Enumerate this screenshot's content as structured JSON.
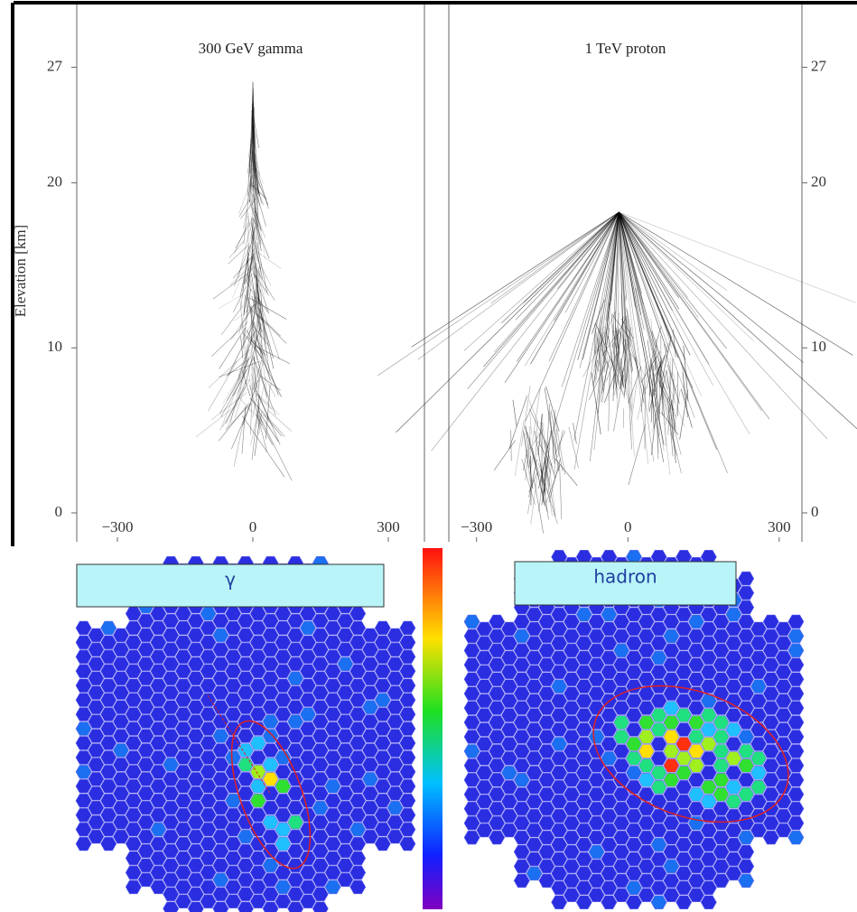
{
  "chart_data": [
    {
      "type": "shower",
      "title": "300 GeV gamma",
      "y_label": "Elevation [km]",
      "xlim": [
        -390,
        380
      ],
      "ylim": [
        -1.75,
        30.8
      ],
      "xticks": [
        {
          "value": -300,
          "label": "−300"
        },
        0,
        300
      ],
      "yticks": [
        0,
        10,
        20,
        27
      ]
    },
    {
      "type": "shower",
      "title": "1 TeV proton",
      "xlim": [
        -355,
        345
      ],
      "ylim": [
        -1.75,
        30.8
      ],
      "xticks": [
        {
          "value": -300,
          "label": "−300"
        },
        0,
        300
      ],
      "yticks": [
        0,
        10,
        20,
        27
      ]
    }
  ],
  "cameras": [
    {
      "label": "γ"
    },
    {
      "label": "hadron"
    }
  ]
}
